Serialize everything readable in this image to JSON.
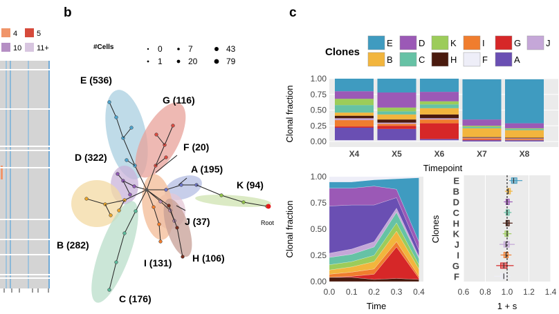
{
  "panel_letters": {
    "b": "b",
    "c": "c"
  },
  "left_legend": {
    "items": [
      {
        "label": "4",
        "color": "#f0956a"
      },
      {
        "label": "5",
        "color": "#d64a3b"
      },
      {
        "label": "10",
        "color": "#b58fc4"
      },
      {
        "label": "11+",
        "color": "#d8c6e0"
      }
    ]
  },
  "tree_panel": {
    "size_legend_title": "#Cells",
    "size_legend": [
      "0",
      "7",
      "43",
      "1",
      "20",
      "79"
    ],
    "clusters": [
      {
        "key": "E",
        "label": "E (536)",
        "color": "#a9cfe0"
      },
      {
        "key": "G",
        "label": "G (116)",
        "color": "#e8a19a"
      },
      {
        "key": "F",
        "label": "F (20)",
        "color": "#eeeeee"
      },
      {
        "key": "D",
        "label": "D (322)",
        "color": "#c9b3da"
      },
      {
        "key": "A",
        "label": "A (195)",
        "color": "#b4bde3"
      },
      {
        "key": "K",
        "label": "K (94)",
        "color": "#cfe3b0"
      },
      {
        "key": "B",
        "label": "B (282)",
        "color": "#f3d9a3"
      },
      {
        "key": "J",
        "label": "J (37)",
        "color": "#e4c7d6"
      },
      {
        "key": "I",
        "label": "I (131)",
        "color": "#f3bb96"
      },
      {
        "key": "H",
        "label": "H (106)",
        "color": "#c79f95"
      },
      {
        "key": "C",
        "label": "C (176)",
        "color": "#b9ddca"
      }
    ],
    "root_label": "Root"
  },
  "clone_legend": {
    "title": "Clones",
    "items": [
      {
        "label": "E",
        "color": "#3f9bc0"
      },
      {
        "label": "D",
        "color": "#9b59b6"
      },
      {
        "label": "K",
        "color": "#9ccc5a"
      },
      {
        "label": "I",
        "color": "#f07d2e"
      },
      {
        "label": "G",
        "color": "#d62728"
      },
      {
        "label": "J",
        "color": "#c5a7d8"
      },
      {
        "label": "B",
        "color": "#f2b53d"
      },
      {
        "label": "C",
        "color": "#66c2a5"
      },
      {
        "label": "H",
        "color": "#4a1a0e"
      },
      {
        "label": "F",
        "color": "#eeeef8"
      },
      {
        "label": "A",
        "color": "#6a4fb3"
      }
    ]
  },
  "chart_data": [
    {
      "type": "bar",
      "stacked": true,
      "xlabel": "Timepoint",
      "ylabel": "Clonal fraction",
      "categories": [
        "X4",
        "X5",
        "X6",
        "X7",
        "X8"
      ],
      "yticks": [
        "0.00",
        "0.25",
        "0.50",
        "0.75",
        "1.00"
      ],
      "ylim": [
        0,
        1
      ],
      "series": [
        {
          "name": "F",
          "values": [
            0.02,
            0.02,
            0.02,
            0.0,
            0.0
          ]
        },
        {
          "name": "A",
          "values": [
            0.2,
            0.18,
            0.02,
            0.02,
            0.02
          ]
        },
        {
          "name": "G",
          "values": [
            0.02,
            0.05,
            0.25,
            0.01,
            0.0
          ]
        },
        {
          "name": "I",
          "values": [
            0.1,
            0.03,
            0.06,
            0.02,
            0.02
          ]
        },
        {
          "name": "J",
          "values": [
            0.03,
            0.02,
            0.02,
            0.01,
            0.01
          ]
        },
        {
          "name": "H",
          "values": [
            0.04,
            0.05,
            0.06,
            0.01,
            0.01
          ]
        },
        {
          "name": "B",
          "values": [
            0.05,
            0.08,
            0.1,
            0.14,
            0.12
          ]
        },
        {
          "name": "C",
          "values": [
            0.12,
            0.05,
            0.06,
            0.02,
            0.02
          ]
        },
        {
          "name": "K",
          "values": [
            0.1,
            0.06,
            0.05,
            0.02,
            0.01
          ]
        },
        {
          "name": "D",
          "values": [
            0.12,
            0.24,
            0.15,
            0.1,
            0.08
          ]
        },
        {
          "name": "E",
          "values": [
            0.2,
            0.22,
            0.21,
            0.64,
            0.7
          ]
        }
      ]
    },
    {
      "type": "area",
      "stacked": true,
      "xlabel": "Time",
      "ylabel": "Clonal fraction",
      "x": [
        0.0,
        0.1,
        0.2,
        0.3,
        0.4
      ],
      "xticks": [
        "0.0",
        "0.1",
        "0.2",
        "0.3",
        "0.4"
      ],
      "yticks": [
        "0.00",
        "0.25",
        "0.50",
        "0.75",
        "1.00"
      ],
      "ylim": [
        0,
        1
      ],
      "series": [
        {
          "name": "H",
          "values": [
            0.04,
            0.04,
            0.02,
            0.03,
            0.02
          ]
        },
        {
          "name": "G",
          "values": [
            0.0,
            0.01,
            0.05,
            0.3,
            0.01
          ]
        },
        {
          "name": "I",
          "values": [
            0.03,
            0.04,
            0.05,
            0.05,
            0.02
          ]
        },
        {
          "name": "B",
          "values": [
            0.04,
            0.05,
            0.07,
            0.1,
            0.07
          ]
        },
        {
          "name": "K",
          "values": [
            0.05,
            0.05,
            0.06,
            0.08,
            0.04
          ]
        },
        {
          "name": "C",
          "values": [
            0.07,
            0.07,
            0.08,
            0.1,
            0.06
          ]
        },
        {
          "name": "J",
          "values": [
            0.04,
            0.05,
            0.05,
            0.04,
            0.02
          ]
        },
        {
          "name": "A",
          "values": [
            0.45,
            0.42,
            0.35,
            0.1,
            0.06
          ]
        },
        {
          "name": "D",
          "values": [
            0.17,
            0.16,
            0.18,
            0.08,
            0.08
          ]
        },
        {
          "name": "E",
          "values": [
            0.06,
            0.06,
            0.06,
            0.1,
            0.61
          ]
        },
        {
          "name": "F",
          "values": [
            0.05,
            0.05,
            0.03,
            0.02,
            0.01
          ]
        }
      ]
    },
    {
      "type": "boxplot",
      "xlabel": "1 + s",
      "ylabel": "Clones",
      "xlim": [
        0.6,
        1.4
      ],
      "xticks": [
        "0.6",
        "0.8",
        "1.0",
        "1.2",
        "1.4"
      ],
      "reference_x": 1.0,
      "categories": [
        "E",
        "B",
        "D",
        "C",
        "H",
        "K",
        "J",
        "I",
        "G",
        "F"
      ],
      "boxes": [
        {
          "label": "E",
          "min": 1.02,
          "q1": 1.04,
          "median": 1.06,
          "q3": 1.09,
          "max": 1.14
        },
        {
          "label": "B",
          "min": 0.98,
          "q1": 1.0,
          "median": 1.01,
          "q3": 1.03,
          "max": 1.05
        },
        {
          "label": "D",
          "min": 0.97,
          "q1": 0.99,
          "median": 1.0,
          "q3": 1.02,
          "max": 1.05
        },
        {
          "label": "C",
          "min": 0.97,
          "q1": 0.99,
          "median": 1.0,
          "q3": 1.02,
          "max": 1.04
        },
        {
          "label": "H",
          "min": 0.96,
          "q1": 0.99,
          "median": 1.0,
          "q3": 1.02,
          "max": 1.05
        },
        {
          "label": "K",
          "min": 0.96,
          "q1": 0.98,
          "median": 1.0,
          "q3": 1.01,
          "max": 1.04
        },
        {
          "label": "J",
          "min": 0.93,
          "q1": 0.97,
          "median": 0.99,
          "q3": 1.02,
          "max": 1.07
        },
        {
          "label": "I",
          "min": 0.94,
          "q1": 0.97,
          "median": 0.99,
          "q3": 1.01,
          "max": 1.04
        },
        {
          "label": "G",
          "min": 0.9,
          "q1": 0.94,
          "median": 0.97,
          "q3": 1.0,
          "max": 1.06
        },
        {
          "label": "F",
          "min": 0.88,
          "q1": 0.94,
          "median": 0.97,
          "q3": 1.0,
          "max": 1.03
        }
      ]
    }
  ]
}
